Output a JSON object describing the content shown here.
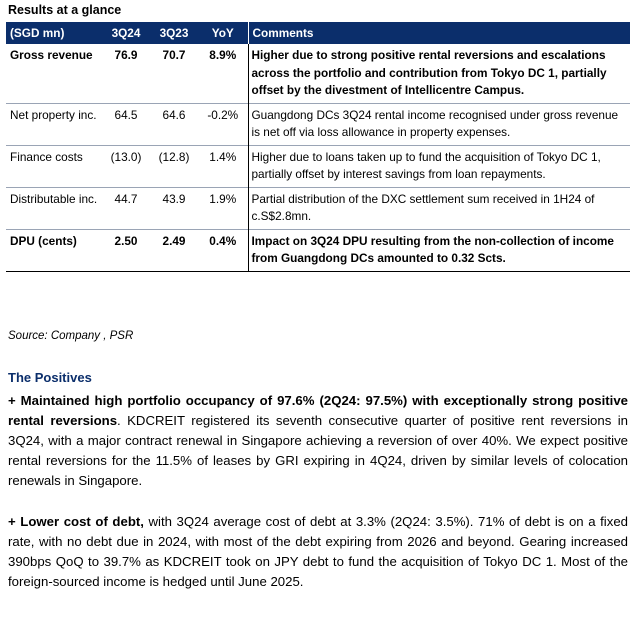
{
  "title": "Results at a glance",
  "table": {
    "headers": [
      "(SGD mn)",
      "3Q24",
      "3Q23",
      "YoY",
      "Comments"
    ],
    "rows": [
      {
        "label": "Gross revenue",
        "q324": "76.9",
        "q323": "70.7",
        "yoy": "8.9%",
        "comment": "Higher due to strong positive rental reversions and escalations across the portfolio and contribution from Tokyo DC 1, partially offset by the divestment of Intellicentre Campus."
      },
      {
        "label": "Net property inc.",
        "q324": "64.5",
        "q323": "64.6",
        "yoy": "-0.2%",
        "comment": "Guangdong DCs 3Q24 rental income recognised under gross revenue is net off via loss allowance in property expenses."
      },
      {
        "label": "Finance costs",
        "q324": "(13.0)",
        "q323": "(12.8)",
        "yoy": "1.4%",
        "comment": "Higher due to loans taken up to fund the acquisition of Tokyo DC 1, partially offset by interest savings from loan repayments."
      },
      {
        "label": "Distributable inc.",
        "q324": "44.7",
        "q323": "43.9",
        "yoy": "1.9%",
        "comment": "Partial distribution of the DXC settlement sum received in 1H24 of c.S$2.8mn."
      },
      {
        "label": "DPU (cents)",
        "q324": "2.50",
        "q323": "2.49",
        "yoy": "0.4%",
        "comment": "Impact on 3Q24 DPU resulting from the non-collection of income from Guangdong DCs amounted to 0.32 Scts."
      }
    ]
  },
  "source": "Source: Company , PSR",
  "positives": {
    "heading": "The Positives",
    "p1_bold": "+ Maintained high portfolio occupancy of 97.6% (2Q24: 97.5%) with exceptionally strong positive rental reversions",
    "p1_text": ". KDCREIT registered its seventh consecutive quarter of positive rent reversions in 3Q24, with a major contract renewal in Singapore achieving a reversion of over 40%. We expect positive rental reversions for the 11.5% of leases by GRI expiring in 4Q24, driven by similar levels of colocation renewals in Singapore.",
    "p2_bold": "+ Lower cost of debt,",
    "p2_text": " with 3Q24 average cost of debt at 3.3% (2Q24: 3.5%). 71% of debt is on a fixed rate, with no debt due in 2024, with most of the debt expiring from 2026 and beyond. Gearing increased 390bps QoQ to 39.7% as KDCREIT took on JPY debt to fund the acquisition of Tokyo DC 1. Most of the foreign-sourced income is hedged until June 2025."
  }
}
